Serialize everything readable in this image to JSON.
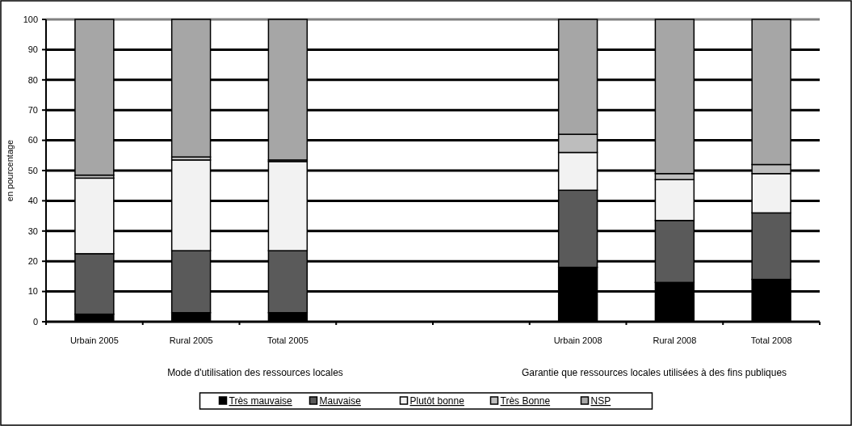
{
  "chart_data": {
    "type": "bar",
    "stacked": true,
    "ylabel": "en pourcentage",
    "categories": [
      "Urbain 2005",
      "Rural 2005",
      "Total 2005",
      null,
      null,
      "Urbain 2008",
      "Rural 2008",
      "Total 2008"
    ],
    "series": [
      {
        "name": "Très mauvaise",
        "color": "#000000",
        "values": [
          2.5,
          3,
          3,
          null,
          null,
          18,
          13,
          14
        ]
      },
      {
        "name": "Mauvaise",
        "color": "#5a5a5a",
        "values": [
          20,
          20.5,
          20.5,
          null,
          null,
          25.5,
          20.5,
          22
        ]
      },
      {
        "name": "Plutôt bonne",
        "color": "#f2f2f2",
        "values": [
          25,
          30,
          29.5,
          null,
          null,
          12.5,
          13.5,
          13
        ]
      },
      {
        "name": "Très Bonne",
        "color": "#bdbdbd",
        "values": [
          1,
          1,
          0.5,
          null,
          null,
          6,
          2,
          3
        ]
      },
      {
        "name": "NSP",
        "color": "#a6a6a6",
        "values": [
          51.5,
          45.5,
          46.5,
          null,
          null,
          38,
          51,
          48
        ]
      }
    ],
    "ylim": [
      0,
      100
    ],
    "yticks": [
      0,
      10,
      20,
      30,
      40,
      50,
      60,
      70,
      80,
      90,
      100
    ],
    "grid": "y",
    "legend": "bottom",
    "annotations": [
      "Mode d'utilisation des ressources locales",
      "Garantie que ressources locales utilisées à des fins publiques"
    ]
  }
}
